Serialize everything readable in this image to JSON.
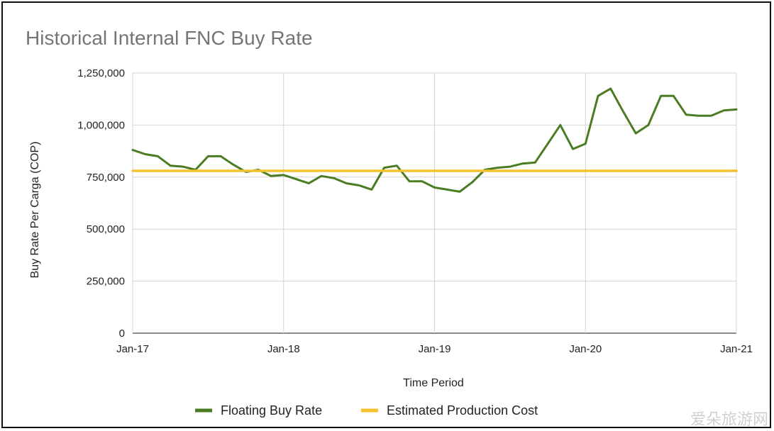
{
  "chart_data": {
    "type": "line",
    "title": "Historical Internal FNC Buy Rate",
    "xlabel": "Time Period",
    "ylabel": "Buy Rate Per Carga (COP)",
    "ylim": [
      0,
      1250000
    ],
    "y_ticks": [
      "0",
      "250,000",
      "500,000",
      "750,000",
      "1,000,000",
      "1,250,000"
    ],
    "x_ticks": [
      "Jan-17",
      "Jan-18",
      "Jan-19",
      "Jan-20",
      "Jan-21"
    ],
    "x_range": [
      "2017-01",
      "2021-01"
    ],
    "grid": true,
    "legend_position": "bottom",
    "series": [
      {
        "name": "Floating Buy Rate",
        "color": "#4a7c23",
        "x": [
          "2017-01",
          "2017-02",
          "2017-03",
          "2017-04",
          "2017-05",
          "2017-06",
          "2017-07",
          "2017-08",
          "2017-09",
          "2017-10",
          "2017-11",
          "2017-12",
          "2018-01",
          "2018-02",
          "2018-03",
          "2018-04",
          "2018-05",
          "2018-06",
          "2018-07",
          "2018-08",
          "2018-09",
          "2018-10",
          "2018-11",
          "2018-12",
          "2019-01",
          "2019-02",
          "2019-03",
          "2019-04",
          "2019-05",
          "2019-06",
          "2019-07",
          "2019-08",
          "2019-09",
          "2019-10",
          "2019-11",
          "2019-12",
          "2020-01",
          "2020-02",
          "2020-03",
          "2020-04",
          "2020-05",
          "2020-06",
          "2020-07",
          "2020-08",
          "2020-09",
          "2020-10",
          "2020-11",
          "2020-12",
          "2021-01"
        ],
        "values": [
          880000,
          860000,
          850000,
          805000,
          800000,
          785000,
          850000,
          850000,
          810000,
          775000,
          785000,
          755000,
          760000,
          740000,
          720000,
          755000,
          745000,
          720000,
          710000,
          690000,
          795000,
          805000,
          730000,
          730000,
          700000,
          690000,
          680000,
          725000,
          785000,
          795000,
          800000,
          815000,
          820000,
          910000,
          1000000,
          885000,
          910000,
          1140000,
          1175000,
          1065000,
          960000,
          1000000,
          1140000,
          1140000,
          1050000,
          1045000,
          1045000,
          1070000,
          1075000
        ]
      },
      {
        "name": "Estimated Production Cost",
        "color": "#f2c12e",
        "x": [
          "2017-01",
          "2021-01"
        ],
        "values": [
          780000,
          780000
        ]
      }
    ]
  },
  "watermark": "爱朵旅游网"
}
